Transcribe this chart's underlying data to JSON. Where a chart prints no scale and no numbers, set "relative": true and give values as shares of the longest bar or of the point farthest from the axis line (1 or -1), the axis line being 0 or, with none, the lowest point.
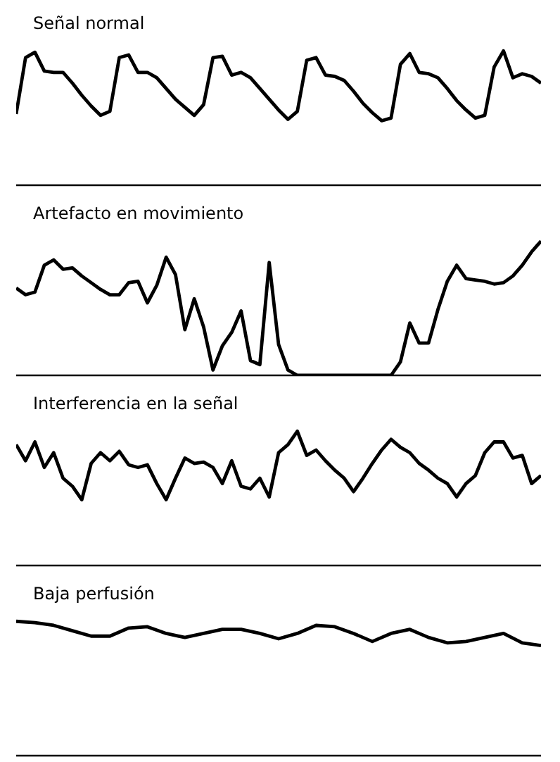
{
  "chart_data": [
    {
      "type": "line",
      "title": "Señal normal",
      "relative": true,
      "color": "#000000",
      "categories": [
        null,
        null,
        null,
        null,
        null,
        null,
        null,
        null,
        null,
        null,
        null,
        null,
        null,
        null,
        null,
        null,
        null,
        null,
        null,
        null,
        null,
        null,
        null,
        null,
        null,
        null,
        null,
        null,
        null,
        null,
        null,
        null,
        null,
        null,
        null,
        null,
        null,
        null,
        null,
        null,
        null,
        null,
        null,
        null,
        null,
        null,
        null,
        null,
        null,
        null,
        null,
        null,
        null,
        null,
        null,
        null,
        null
      ],
      "values": [
        0.53,
        0.95,
        0.99,
        0.85,
        0.84,
        0.84,
        0.76,
        0.67,
        0.59,
        0.52,
        0.55,
        0.95,
        0.97,
        0.84,
        0.84,
        0.8,
        0.72,
        0.64,
        0.58,
        0.52,
        0.6,
        0.95,
        0.96,
        0.82,
        0.84,
        0.8,
        0.72,
        0.64,
        0.56,
        0.49,
        0.55,
        0.93,
        0.95,
        0.82,
        0.81,
        0.78,
        0.7,
        0.61,
        0.54,
        0.48,
        0.5,
        0.9,
        0.98,
        0.84,
        0.83,
        0.8,
        0.72,
        0.63,
        0.56,
        0.5,
        0.52,
        0.88,
        1.0,
        0.8,
        0.83,
        0.81,
        0.76
      ]
    },
    {
      "type": "line",
      "title": "Artefacto en movimiento",
      "relative": true,
      "color": "#000000",
      "categories": [
        null,
        null,
        null,
        null,
        null,
        null,
        null,
        null,
        null,
        null,
        null,
        null,
        null,
        null,
        null,
        null,
        null,
        null,
        null,
        null,
        null,
        null,
        null,
        null,
        null,
        null,
        null,
        null,
        null,
        null,
        null,
        null,
        null,
        null,
        null,
        null,
        null,
        null,
        null,
        null,
        null,
        null,
        null,
        null,
        null,
        null,
        null,
        null,
        null,
        null,
        null,
        null,
        null,
        null,
        null,
        null,
        null
      ],
      "values": [
        0.65,
        0.6,
        0.62,
        0.82,
        0.86,
        0.79,
        0.8,
        0.74,
        0.69,
        0.64,
        0.6,
        0.6,
        0.69,
        0.7,
        0.54,
        0.67,
        0.88,
        0.75,
        0.34,
        0.57,
        0.36,
        0.04,
        0.22,
        0.32,
        0.48,
        0.11,
        0.08,
        0.84,
        0.23,
        0.04,
        0,
        0,
        0,
        0,
        0,
        0,
        0,
        0,
        0,
        0,
        0,
        0.1,
        0.39,
        0.24,
        0.24,
        0.49,
        0.7,
        0.82,
        0.72,
        0.71,
        0.7,
        0.68,
        0.69,
        0.74,
        0.82,
        0.92,
        1.0
      ]
    },
    {
      "type": "line",
      "title": "Interferencia en la señal",
      "relative": true,
      "color": "#000000",
      "categories": [
        null,
        null,
        null,
        null,
        null,
        null,
        null,
        null,
        null,
        null,
        null,
        null,
        null,
        null,
        null,
        null,
        null,
        null,
        null,
        null,
        null,
        null,
        null,
        null,
        null,
        null,
        null,
        null,
        null,
        null,
        null,
        null,
        null,
        null,
        null,
        null,
        null,
        null,
        null,
        null,
        null,
        null,
        null,
        null,
        null,
        null,
        null,
        null,
        null,
        null,
        null,
        null,
        null,
        null,
        null,
        null,
        null
      ],
      "values": [
        0.9,
        0.78,
        0.92,
        0.73,
        0.84,
        0.65,
        0.59,
        0.49,
        0.76,
        0.84,
        0.78,
        0.85,
        0.75,
        0.73,
        0.75,
        0.61,
        0.49,
        0.65,
        0.8,
        0.76,
        0.77,
        0.73,
        0.61,
        0.78,
        0.59,
        0.57,
        0.65,
        0.51,
        0.84,
        0.9,
        1.0,
        0.82,
        0.86,
        0.78,
        0.71,
        0.65,
        0.55,
        0.65,
        0.76,
        0.86,
        0.94,
        0.88,
        0.84,
        0.76,
        0.71,
        0.65,
        0.61,
        0.51,
        0.61,
        0.67,
        0.84,
        0.92,
        0.92,
        0.8,
        0.82,
        0.61,
        0.67
      ]
    },
    {
      "type": "line",
      "title": "Baja perfusión",
      "relative": true,
      "color": "#000000",
      "categories": [
        null,
        null,
        null,
        null,
        null,
        null,
        null,
        null,
        null,
        null,
        null,
        null,
        null,
        null,
        null,
        null,
        null,
        null,
        null,
        null,
        null,
        null,
        null,
        null,
        null,
        null,
        null,
        null,
        null
      ],
      "values": [
        1.0,
        0.99,
        0.97,
        0.93,
        0.89,
        0.89,
        0.95,
        0.96,
        0.91,
        0.88,
        0.91,
        0.94,
        0.94,
        0.91,
        0.87,
        0.91,
        0.97,
        0.96,
        0.91,
        0.85,
        0.91,
        0.94,
        0.88,
        0.84,
        0.85,
        0.88,
        0.91,
        0.84,
        0.82
      ]
    }
  ]
}
